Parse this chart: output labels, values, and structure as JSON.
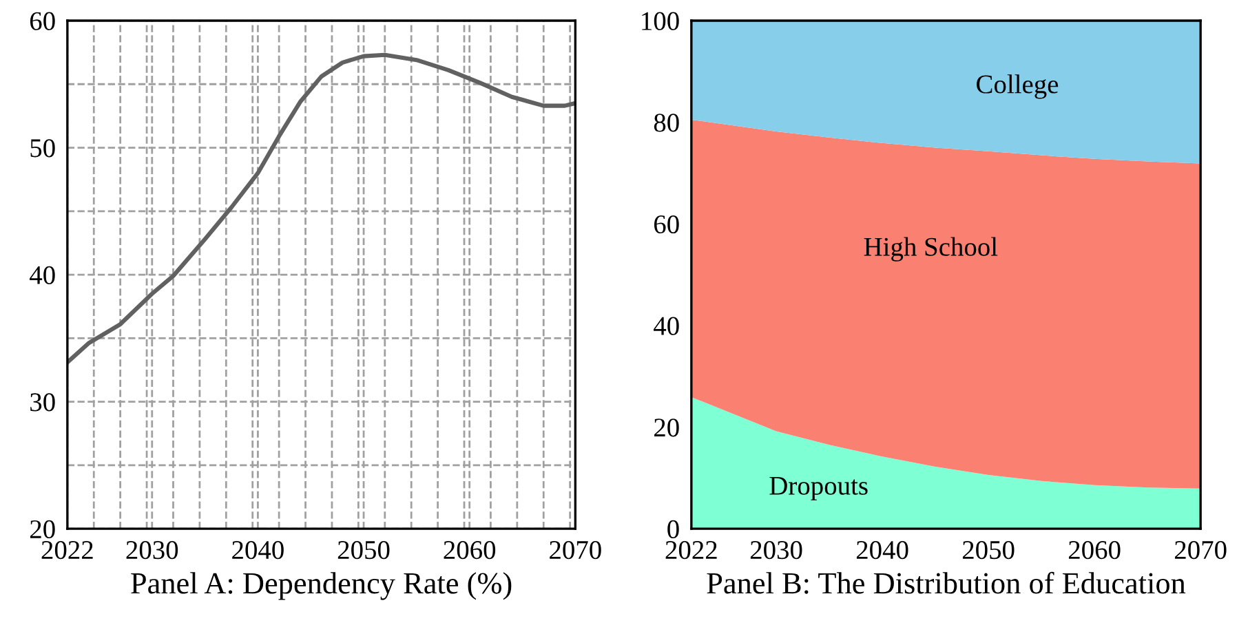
{
  "chart_data": [
    {
      "type": "line",
      "title": "Panel A: Dependency Rate (%)",
      "x": [
        2022,
        2024,
        2027,
        2030,
        2032,
        2035,
        2037.5,
        2040,
        2042,
        2044,
        2046,
        2048,
        2050,
        2052,
        2055,
        2058,
        2061,
        2064,
        2067,
        2069,
        2070
      ],
      "series": [
        {
          "color": "#616161",
          "values": [
            33.1,
            34.6,
            36.1,
            38.5,
            39.9,
            42.8,
            45.3,
            48.0,
            50.9,
            53.6,
            55.6,
            56.7,
            57.2,
            57.3,
            56.9,
            56.1,
            55.1,
            54.0,
            53.3,
            53.3,
            53.5
          ]
        }
      ],
      "xlim": [
        2022,
        2070
      ],
      "ylim": [
        20,
        60
      ],
      "xticks": [
        2022,
        {
          "value": 2024.5,
          "label": null
        },
        {
          "value": 2027,
          "label": null
        },
        {
          "value": 2029.5,
          "label": null
        },
        2030,
        {
          "value": 2032,
          "label": null
        },
        {
          "value": 2034.5,
          "label": null
        },
        {
          "value": 2037,
          "label": null
        },
        {
          "value": 2039.5,
          "label": null
        },
        2040,
        {
          "value": 2042,
          "label": null
        },
        {
          "value": 2044.5,
          "label": null
        },
        {
          "value": 2047,
          "label": null
        },
        {
          "value": 2049.5,
          "label": null
        },
        2050,
        {
          "value": 2052,
          "label": null
        },
        {
          "value": 2054.5,
          "label": null
        },
        {
          "value": 2057,
          "label": null
        },
        {
          "value": 2059.5,
          "label": null
        },
        2060,
        {
          "value": 2062,
          "label": null
        },
        {
          "value": 2064.5,
          "label": null
        },
        {
          "value": 2067,
          "label": null
        },
        {
          "value": 2069.5,
          "label": null
        },
        2070
      ],
      "yticks": [
        20,
        {
          "value": 25,
          "label": null
        },
        30,
        {
          "value": 35,
          "label": null
        },
        40,
        {
          "value": 45,
          "label": null
        },
        50,
        {
          "value": 55,
          "label": null
        },
        60
      ],
      "grid": true,
      "line_style": "solid"
    },
    {
      "type": "area",
      "title": "Panel B: The Distribution of Education",
      "stacked": true,
      "x": [
        2022,
        2030,
        2035,
        2040,
        2045,
        2050,
        2055,
        2060,
        2065,
        2070
      ],
      "series": [
        {
          "name": "Dropouts",
          "color": "#7fffd4",
          "values": [
            25.9,
            19.2,
            16.5,
            14.2,
            12.2,
            10.6,
            9.4,
            8.6,
            8.1,
            7.9
          ]
        },
        {
          "name": "High School",
          "color": "#fa8072",
          "values": [
            54.6,
            59.0,
            60.5,
            61.7,
            62.8,
            63.7,
            64.1,
            64.2,
            64.2,
            64.0
          ]
        },
        {
          "name": "College",
          "color": "#87ceeb",
          "values": [
            19.5,
            21.8,
            23.0,
            24.1,
            25.0,
            25.7,
            26.5,
            27.2,
            27.7,
            28.1
          ]
        }
      ],
      "xlim": [
        2022,
        2070
      ],
      "ylim": [
        0,
        100
      ],
      "xticks": [
        2022,
        2030,
        2040,
        2050,
        2060,
        2070
      ],
      "yticks": [
        0,
        20,
        40,
        60,
        80,
        100
      ],
      "grid": false
    }
  ]
}
